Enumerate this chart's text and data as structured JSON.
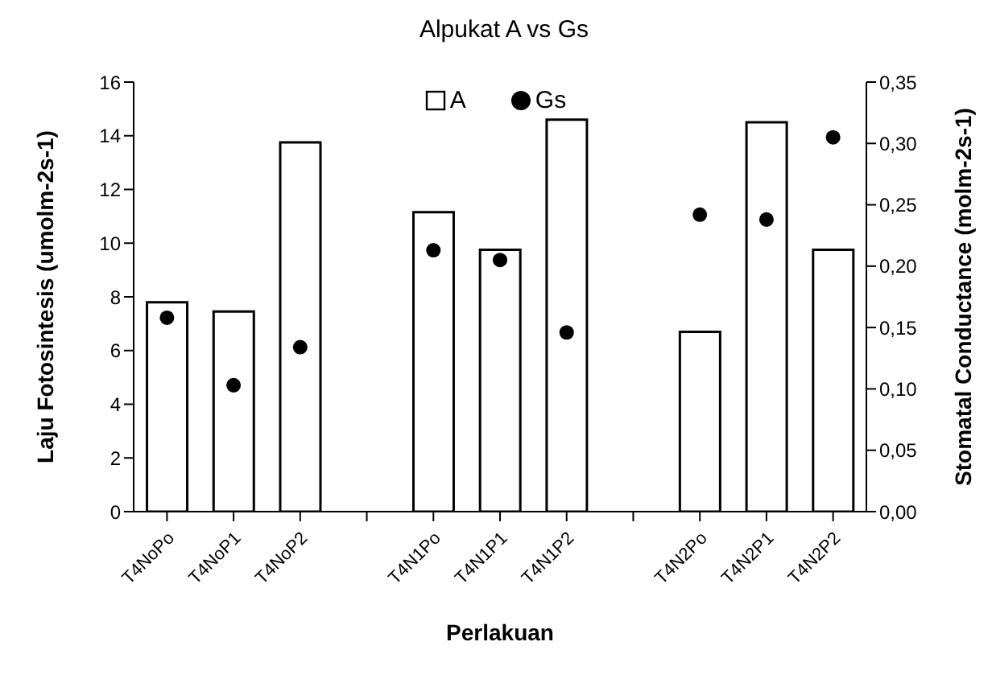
{
  "chart_data": {
    "type": "bar",
    "title": "Alpukat A vs Gs",
    "xlabel": "Perlakuan",
    "ylabel": "Laju Fotosintesis (umolm-2s-1)",
    "y2label": "Stomatal Conductance  (molm-2s-1)",
    "categories": [
      "T4NoPo",
      "T4NoP1",
      "T4NoP2",
      null,
      "T4N1Po",
      "T4N1P1",
      "T4N1P2",
      null,
      "T4N2Po",
      "T4N2P1",
      "T4N2P2"
    ],
    "series": [
      {
        "name": "A",
        "color": "#ffffff",
        "values": [
          7.8,
          7.45,
          13.75,
          null,
          11.15,
          9.75,
          14.6,
          null,
          6.7,
          14.5,
          9.75
        ]
      },
      {
        "name": "Gs",
        "type": "scatter",
        "axis": "y2",
        "marker": "circle",
        "color": "#000000",
        "values": [
          0.158,
          0.103,
          0.134,
          null,
          0.213,
          0.205,
          0.146,
          null,
          0.242,
          0.238,
          0.305
        ]
      }
    ],
    "ylim": [
      0,
      16
    ],
    "yticks": [
      0,
      2,
      4,
      6,
      8,
      10,
      12,
      14,
      16
    ],
    "y2lim": [
      0,
      0.35
    ],
    "y2ticks": [
      {
        "value": 0,
        "label": "0,00"
      },
      {
        "value": 0.05,
        "label": "0,05"
      },
      {
        "value": 0.1,
        "label": "0,10"
      },
      {
        "value": 0.15,
        "label": "0,15"
      },
      {
        "value": 0.2,
        "label": "0,20"
      },
      {
        "value": 0.25,
        "label": "0,25"
      },
      {
        "value": 0.3,
        "label": "0,30"
      },
      {
        "value": 0.35,
        "label": "0,35"
      }
    ],
    "legend": "top",
    "grid": false
  }
}
